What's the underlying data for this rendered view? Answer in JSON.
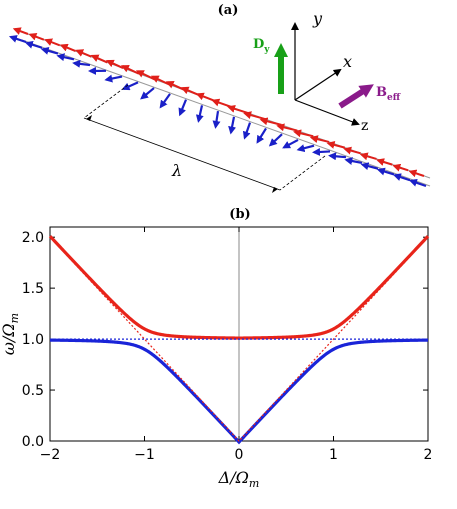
{
  "panel_a": {
    "label": "(a)",
    "axes": {
      "y": "y",
      "x": "x",
      "z": "z"
    },
    "dy_label": {
      "main": "D",
      "sub": "y"
    },
    "beff_label": {
      "main": "B",
      "sub": "eff"
    },
    "wavelength": "λ",
    "colors": {
      "red": "#e0201a",
      "blue": "#1a20c8",
      "green": "#18a018",
      "purple": "#8a1a8a"
    }
  },
  "panel_b": {
    "label": "(b)"
  },
  "chart_data": {
    "type": "line",
    "xlabel": "Δ/Ω_m",
    "ylabel": "ω/Ω_m",
    "xlabel_main": "Δ/Ω",
    "xlabel_sub": "m",
    "ylabel_main": "ω/Ω",
    "ylabel_sub": "m",
    "xlim": [
      -2,
      2
    ],
    "ylim": [
      0,
      2.1
    ],
    "xticks": [
      -2,
      -1,
      0,
      1,
      2
    ],
    "xtick_labels": [
      "−2",
      "−1",
      "0",
      "1",
      "2"
    ],
    "yticks": [
      0,
      0.5,
      1,
      1.5,
      2
    ],
    "ytick_labels": [
      "0.0",
      "0.5",
      "1.0",
      "1.5",
      "2.0"
    ],
    "coupling_g": 0.1,
    "series": [
      {
        "color": "#e8241a",
        "style": "solid",
        "formula": "upper-branch"
      },
      {
        "color": "#1a24d8",
        "style": "solid",
        "formula": "lower-branch"
      },
      {
        "color": "#e8241a",
        "style": "dotted",
        "formula": "uncoupled |Δ|"
      },
      {
        "color": "#1a24d8",
        "style": "dotted",
        "formula": "uncoupled 1"
      }
    ]
  }
}
